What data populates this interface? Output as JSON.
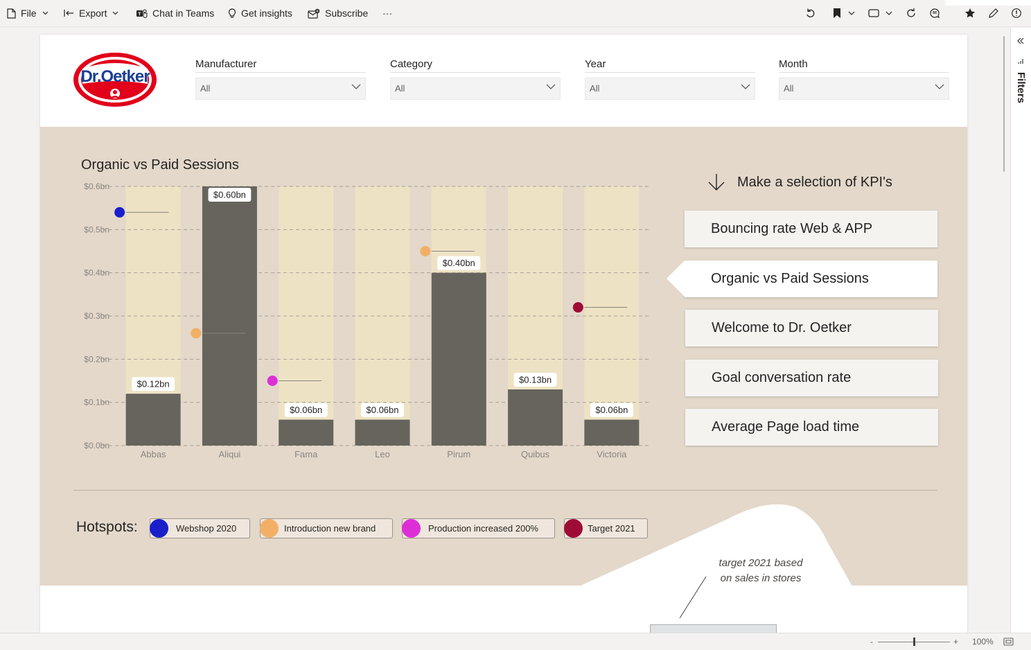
{
  "toolbar": {
    "file": "File",
    "export": "Export",
    "chat_in_teams": "Chat in Teams",
    "get_insights": "Get insights",
    "subscribe": "Subscribe",
    "more": "···"
  },
  "header": {
    "logo_text": "Dr.Oetker",
    "slicers": [
      {
        "title": "Manufacturer",
        "value": "All"
      },
      {
        "title": "Category",
        "value": "All"
      },
      {
        "title": "Year",
        "value": "All"
      },
      {
        "title": "Month",
        "value": "All"
      }
    ]
  },
  "chart_data": {
    "type": "bar",
    "title": "Organic vs Paid Sessions",
    "categories": [
      "Abbas",
      "Aliqui",
      "Fama",
      "Leo",
      "Pirum",
      "Quibus",
      "Victoria"
    ],
    "values": [
      0.12,
      0.6,
      0.06,
      0.06,
      0.4,
      0.13,
      0.06
    ],
    "value_labels": [
      "$0.12bn",
      "$0.60bn",
      "$0.06bn",
      "$0.06bn",
      "$0.40bn",
      "$0.13bn",
      "$0.06bn"
    ],
    "ylim": [
      0,
      0.6
    ],
    "y_ticks": [
      "$0.0bn",
      "$0.1bn",
      "$0.2bn",
      "$0.3bn",
      "$0.4bn",
      "$0.5bn",
      "$0.6bn"
    ],
    "background_bar_value": 0.6,
    "colors": {
      "bar": "#66645c",
      "background_bar": "#ede3c4",
      "grid": "#a8a095"
    },
    "hotspot_markers": [
      {
        "category": "Abbas",
        "y": 0.54,
        "hotspot": "Webshop 2020"
      },
      {
        "category": "Aliqui",
        "y": 0.26,
        "hotspot": "Introduction new brand"
      },
      {
        "category": "Fama",
        "y": 0.15,
        "hotspot": "Production increased 200%"
      },
      {
        "category": "Pirum",
        "y": 0.45,
        "hotspot": "Introduction new brand"
      },
      {
        "category": "Victoria",
        "y": 0.32,
        "hotspot": "Target 2021"
      }
    ]
  },
  "kpi": {
    "heading": "Make a selection of KPI's",
    "items": [
      {
        "label": "Bouncing rate Web & APP",
        "active": false
      },
      {
        "label": "Organic vs Paid Sessions",
        "active": true
      },
      {
        "label": "Welcome to Dr. Oetker",
        "active": false
      },
      {
        "label": "Goal conversation rate",
        "active": false
      },
      {
        "label": "Average Page load time",
        "active": false
      }
    ]
  },
  "hotspots": {
    "label": "Hotspots:",
    "items": [
      {
        "label": "Webshop 2020",
        "color": "#1a1fcc"
      },
      {
        "label": "Introduction new brand",
        "color": "#f2b066"
      },
      {
        "label": "Production increased 200%",
        "color": "#dd2fd6"
      },
      {
        "label": "Target 2021",
        "color": "#9e0c36"
      }
    ]
  },
  "annotation": {
    "line1": "target 2021 based",
    "line2": "on sales in stores"
  },
  "filters_pane": {
    "label": "Filters"
  },
  "status": {
    "zoom": "100%",
    "minus": "-",
    "plus": "+"
  }
}
